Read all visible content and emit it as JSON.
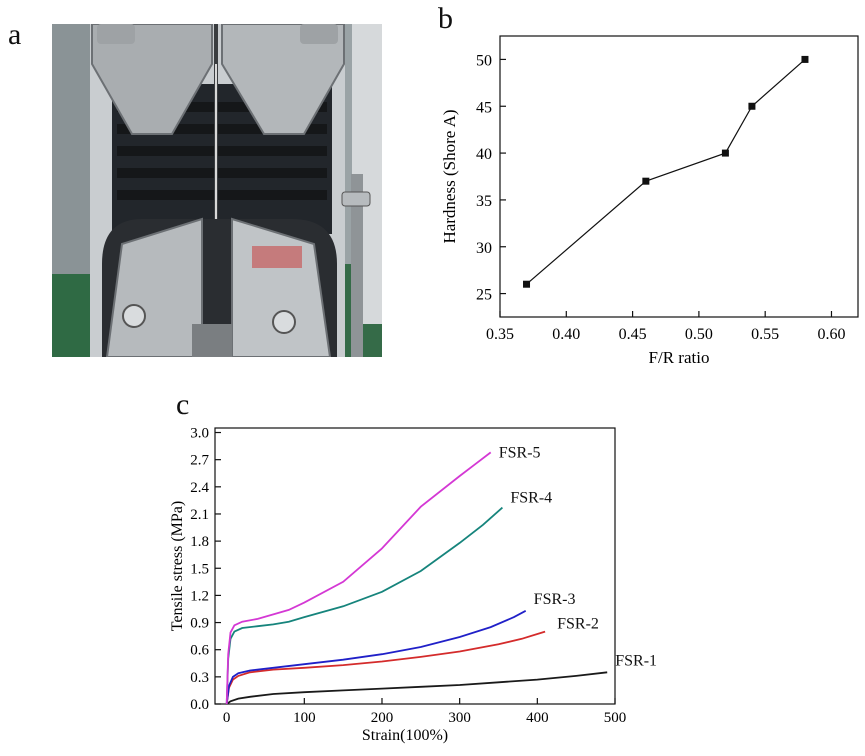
{
  "panels": {
    "a": {
      "letter": "a"
    },
    "b": {
      "letter": "b"
    },
    "c": {
      "letter": "c"
    }
  },
  "colors": {
    "background": "#ffffff",
    "axis": "#111111",
    "fsr1": "#1a1a1a",
    "fsr2": "#d42b2b",
    "fsr3": "#2020c8",
    "fsr4": "#16847c",
    "fsr5": "#d438d4"
  },
  "photo": {
    "description_icon": "tensile-test-grips-photo-icon"
  },
  "chart_data": [
    {
      "type": "line",
      "xlabel": "F/R ratio",
      "ylabel": "Hardness (Shore A)",
      "xlim": [
        0.35,
        0.62
      ],
      "ylim": [
        22.5,
        52.5
      ],
      "xticks": [
        0.35,
        0.4,
        0.45,
        0.5,
        0.55,
        0.6
      ],
      "xtick_labels": [
        "0.35",
        "0.40",
        "0.45",
        "0.50",
        "0.55",
        "0.60"
      ],
      "yticks": [
        25,
        30,
        35,
        40,
        45,
        50
      ],
      "ytick_labels": [
        "25",
        "30",
        "35",
        "40",
        "45",
        "50"
      ],
      "marker": "square",
      "grid": false,
      "series": [
        {
          "x": [
            0.37,
            0.46,
            0.52,
            0.54,
            0.58
          ],
          "y": [
            26,
            37,
            40,
            45,
            50
          ]
        }
      ]
    },
    {
      "type": "line",
      "xlabel": "Strain(100%)",
      "ylabel": "Tensile stress (MPa)",
      "xlim": [
        -15,
        500
      ],
      "ylim": [
        0,
        3.05
      ],
      "xticks": [
        0,
        100,
        200,
        300,
        400,
        500
      ],
      "xtick_labels": [
        "0",
        "100",
        "200",
        "300",
        "400",
        "500"
      ],
      "yticks": [
        0.0,
        0.3,
        0.6,
        0.9,
        1.2,
        1.5,
        1.8,
        2.1,
        2.4,
        2.7,
        3.0
      ],
      "ytick_labels": [
        "0.0",
        "0.3",
        "0.6",
        "0.9",
        "1.2",
        "1.5",
        "1.8",
        "2.1",
        "2.4",
        "2.7",
        "3.0"
      ],
      "grid": false,
      "legend": "inline-labels",
      "series": [
        {
          "name": "FSR-1",
          "color": "#1a1a1a",
          "x": [
            0,
            5,
            15,
            30,
            60,
            100,
            150,
            200,
            250,
            300,
            350,
            400,
            450,
            490
          ],
          "y": [
            0.0,
            0.03,
            0.06,
            0.08,
            0.11,
            0.13,
            0.15,
            0.17,
            0.19,
            0.21,
            0.24,
            0.27,
            0.31,
            0.35
          ]
        },
        {
          "name": "FSR-2",
          "color": "#d42b2b",
          "x": [
            0,
            3,
            8,
            15,
            30,
            60,
            100,
            150,
            200,
            250,
            300,
            350,
            380,
            410
          ],
          "y": [
            0.0,
            0.18,
            0.27,
            0.31,
            0.35,
            0.38,
            0.4,
            0.43,
            0.47,
            0.52,
            0.58,
            0.66,
            0.72,
            0.8
          ]
        },
        {
          "name": "FSR-3",
          "color": "#2020c8",
          "x": [
            0,
            3,
            8,
            15,
            30,
            60,
            100,
            150,
            200,
            250,
            300,
            340,
            370,
            385
          ],
          "y": [
            0.0,
            0.2,
            0.3,
            0.34,
            0.37,
            0.4,
            0.44,
            0.49,
            0.55,
            0.63,
            0.74,
            0.85,
            0.96,
            1.03
          ]
        },
        {
          "name": "FSR-4",
          "color": "#16847c",
          "x": [
            0,
            2,
            5,
            10,
            20,
            40,
            60,
            80,
            100,
            150,
            200,
            250,
            300,
            330,
            355
          ],
          "y": [
            0.0,
            0.5,
            0.72,
            0.8,
            0.84,
            0.86,
            0.88,
            0.91,
            0.96,
            1.08,
            1.24,
            1.47,
            1.78,
            1.98,
            2.17
          ]
        },
        {
          "name": "FSR-5",
          "color": "#d438d4",
          "x": [
            0,
            2,
            5,
            10,
            20,
            40,
            60,
            80,
            100,
            150,
            200,
            250,
            300,
            320,
            340
          ],
          "y": [
            0.0,
            0.55,
            0.79,
            0.87,
            0.91,
            0.94,
            0.99,
            1.04,
            1.12,
            1.35,
            1.72,
            2.18,
            2.52,
            2.65,
            2.78
          ]
        }
      ]
    }
  ]
}
